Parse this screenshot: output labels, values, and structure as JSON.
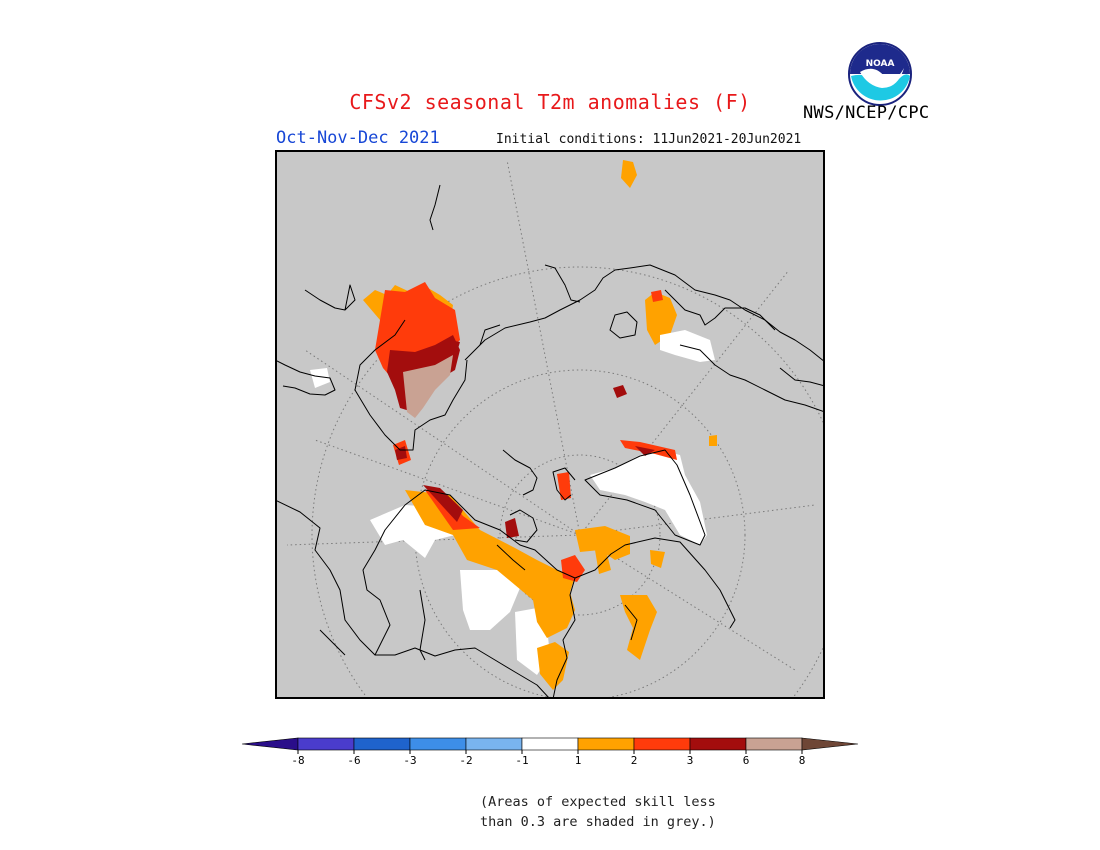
{
  "title": "CFSv2 seasonal T2m anomalies (F)",
  "period": "Oct-Nov-Dec 2021",
  "initial_conditions": "Initial conditions: 11Jun2021-20Jun2021",
  "agency": "NWS/NCEP/CPC",
  "logo_text": "NOAA",
  "colors": {
    "title": "#e8191b",
    "period": "#1747d6",
    "background_grey": "#c8c8c8"
  },
  "legend": {
    "tick_labels": [
      "-8",
      "-6",
      "-3",
      "-2",
      "-1",
      "1",
      "2",
      "3",
      "6",
      "8"
    ],
    "bins": [
      {
        "color": "#2a0e8a"
      },
      {
        "color": "#4a3ccc"
      },
      {
        "color": "#1f63cc"
      },
      {
        "color": "#3d8ee8"
      },
      {
        "color": "#79b4ef"
      },
      {
        "color": "#ffffff"
      },
      {
        "color": "#ffa200"
      },
      {
        "color": "#ff3b0b"
      },
      {
        "color": "#a30d0d"
      },
      {
        "color": "#c9a293"
      },
      {
        "color": "#6e4636"
      }
    ]
  },
  "note_line1": "(Areas of expected skill less",
  "note_line2": "than 0.3 are shaded in grey.)"
}
